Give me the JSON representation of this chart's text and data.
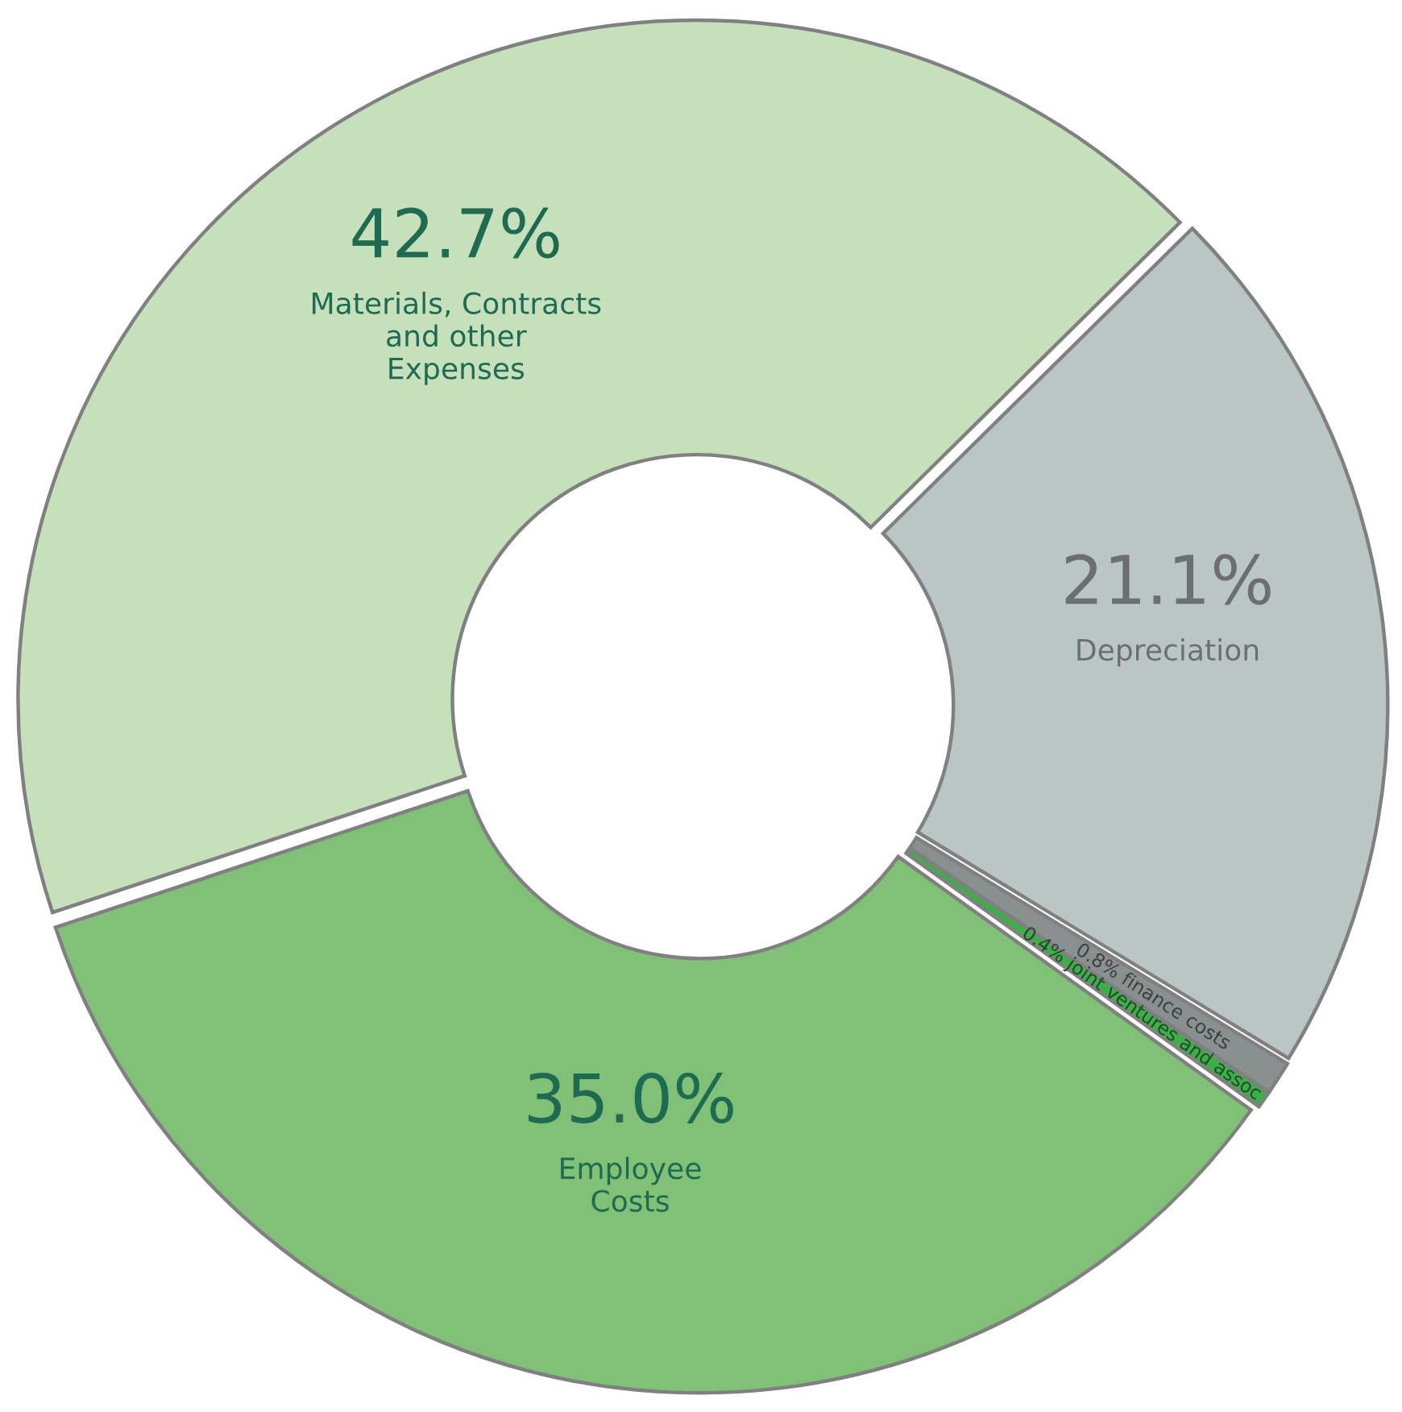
{
  "chart_data": {
    "type": "donut",
    "categories": [
      "Materials, Contracts and other Expenses",
      "Depreciation",
      "finance costs",
      "joint ventures and assoc",
      "Employee Costs"
    ],
    "values": [
      42.7,
      21.1,
      0.8,
      0.4,
      35.0
    ],
    "value_labels": [
      "42.7%",
      "21.1%",
      "0.8%",
      "0.4%",
      "35.0%"
    ],
    "colors": [
      "#c6e0bc",
      "#b9c6c5",
      "#8a8f90",
      "#3fae49",
      "#80c077"
    ],
    "legend": false
  }
}
